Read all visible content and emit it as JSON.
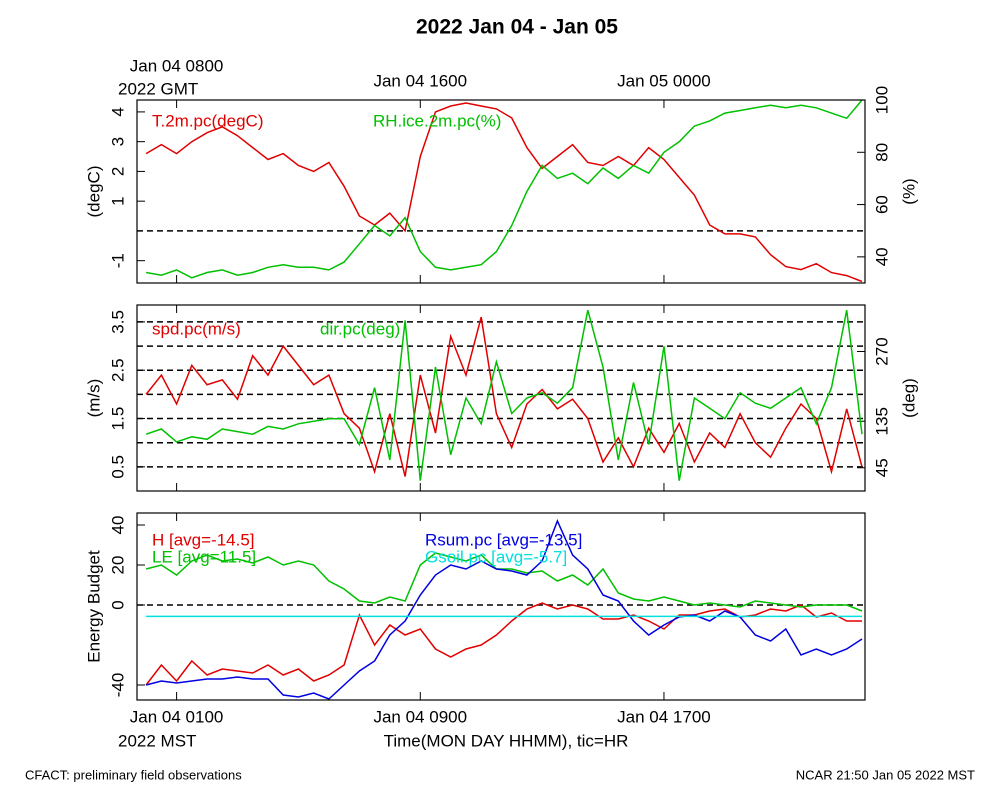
{
  "title": "2022 Jan 04 - Jan 05",
  "x_axis": {
    "label": "Time(MON DAY HHMM), tic=HR",
    "bottom_zone": "2022 MST",
    "top_zone": "2022 GMT",
    "xlim": [
      -0.3,
      23.6
    ],
    "xticks": [
      {
        "value": 1,
        "label": "Jan 04 0100"
      },
      {
        "value": 9,
        "label": "Jan 04 0900"
      },
      {
        "value": 17,
        "label": "Jan 04 1700"
      }
    ],
    "top_xticks": [
      {
        "value": 1,
        "label": "Jan 04 0800"
      },
      {
        "value": 9,
        "label": "Jan 04 1600"
      },
      {
        "value": 17,
        "label": "Jan 05 0000"
      }
    ]
  },
  "footer_left": "CFACT: preliminary field observations",
  "footer_right": "NCAR 21:50 Jan 05 2022 MST",
  "chart_data": [
    {
      "type": "line",
      "ylabel": "(degC)",
      "y2label": "(%)",
      "ylim": [
        -1.75,
        4.4
      ],
      "yticks": [
        -1,
        1,
        2,
        3,
        4
      ],
      "y2lim": [
        30,
        100
      ],
      "y2ticks": [
        40,
        60,
        80,
        100
      ],
      "hlines": [
        0
      ],
      "x": [
        0,
        0.5,
        1,
        1.5,
        2,
        2.5,
        3,
        3.5,
        4,
        4.5,
        5,
        5.5,
        6,
        6.5,
        7,
        7.5,
        8,
        8.5,
        9,
        9.5,
        10,
        10.5,
        11,
        11.5,
        12,
        12.5,
        13,
        13.5,
        14,
        14.5,
        15,
        15.5,
        16,
        16.5,
        17,
        17.5,
        18,
        18.5,
        19,
        19.5,
        20,
        20.5,
        21,
        21.5,
        22,
        22.5,
        23,
        23.5
      ],
      "series": [
        {
          "name": "T.2m.pc(degC)",
          "color": "#e00000",
          "values": [
            2.6,
            2.9,
            2.6,
            3.0,
            3.3,
            3.5,
            3.2,
            2.8,
            2.4,
            2.6,
            2.2,
            2.0,
            2.3,
            1.5,
            0.5,
            0.2,
            0.6,
            0.0,
            2.5,
            4.0,
            4.2,
            4.3,
            4.2,
            4.1,
            3.8,
            2.8,
            2.1,
            2.5,
            2.9,
            2.3,
            2.2,
            2.5,
            2.2,
            2.8,
            2.4,
            1.8,
            1.2,
            0.2,
            -0.1,
            -0.1,
            -0.2,
            -0.8,
            -1.2,
            -1.3,
            -1.1,
            -1.4,
            -1.5,
            -1.7
          ]
        },
        {
          "name": "RH.ice.2m.pc(%)",
          "color": "#00c000",
          "axis": "y2",
          "values": [
            34,
            33,
            35,
            32,
            34,
            35,
            33,
            34,
            36,
            37,
            36,
            36,
            35,
            38,
            45,
            52,
            48,
            55,
            42,
            36,
            35,
            36,
            37,
            42,
            52,
            65,
            75,
            70,
            72,
            68,
            74,
            70,
            75,
            72,
            80,
            84,
            90,
            92,
            95,
            96,
            97,
            98,
            97,
            98,
            97,
            95,
            93,
            100
          ]
        }
      ]
    },
    {
      "type": "line",
      "ylabel": "(m/s)",
      "y2label": "(deg)",
      "ylim": [
        0,
        3.85
      ],
      "yticks": [
        0.5,
        1.5,
        2.5,
        3.5
      ],
      "y2lim": [
        0,
        360
      ],
      "y2ticks": [
        45,
        135,
        270
      ],
      "hlines": [
        0.5,
        1,
        1.5,
        2,
        2.5,
        3,
        3.5
      ],
      "x": [
        0,
        0.5,
        1,
        1.5,
        2,
        2.5,
        3,
        3.5,
        4,
        4.5,
        5,
        5.5,
        6,
        6.5,
        7,
        7.5,
        8,
        8.5,
        9,
        9.5,
        10,
        10.5,
        11,
        11.5,
        12,
        12.5,
        13,
        13.5,
        14,
        14.5,
        15,
        15.5,
        16,
        16.5,
        17,
        17.5,
        18,
        18.5,
        19,
        19.5,
        20,
        20.5,
        21,
        21.5,
        22,
        22.5,
        23,
        23.5
      ],
      "series": [
        {
          "name": "spd.pc(m/s)",
          "color": "#e00000",
          "values": [
            2.0,
            2.4,
            1.8,
            2.6,
            2.2,
            2.3,
            1.9,
            2.8,
            2.4,
            3.0,
            2.6,
            2.2,
            2.4,
            1.6,
            1.3,
            0.4,
            1.6,
            0.3,
            2.4,
            1.2,
            3.2,
            2.4,
            3.6,
            1.6,
            0.9,
            1.8,
            2.1,
            1.7,
            1.9,
            1.5,
            0.6,
            1.1,
            0.5,
            1.3,
            0.8,
            1.4,
            0.6,
            1.2,
            0.9,
            1.6,
            1.0,
            0.7,
            1.3,
            1.8,
            1.5,
            0.4,
            1.7,
            0.5
          ]
        },
        {
          "name": "dir.pc(deg)",
          "color": "#00c000",
          "axis": "y2",
          "values": [
            110,
            120,
            95,
            105,
            100,
            120,
            115,
            110,
            125,
            120,
            130,
            135,
            140,
            140,
            90,
            200,
            60,
            330,
            20,
            240,
            70,
            180,
            130,
            250,
            150,
            180,
            190,
            170,
            200,
            350,
            240,
            60,
            210,
            90,
            280,
            20,
            180,
            160,
            140,
            190,
            170,
            160,
            180,
            200,
            130,
            200,
            350,
            110
          ]
        }
      ]
    },
    {
      "type": "line",
      "ylabel": "Energy Budget",
      "ylim": [
        -47.5,
        46
      ],
      "yticks": [
        -40,
        0,
        20,
        40
      ],
      "hlines": [
        0
      ],
      "x": [
        0,
        0.5,
        1,
        1.5,
        2,
        2.5,
        3,
        3.5,
        4,
        4.5,
        5,
        5.5,
        6,
        6.5,
        7,
        7.5,
        8,
        8.5,
        9,
        9.5,
        10,
        10.5,
        11,
        11.5,
        12,
        12.5,
        13,
        13.5,
        14,
        14.5,
        15,
        15.5,
        16,
        16.5,
        17,
        17.5,
        18,
        18.5,
        19,
        19.5,
        20,
        20.5,
        21,
        21.5,
        22,
        22.5,
        23,
        23.5
      ],
      "series": [
        {
          "name": "H [avg=-14.5]",
          "color": "#e00000",
          "values": [
            -40,
            -30,
            -38,
            -28,
            -35,
            -32,
            -33,
            -34,
            -30,
            -35,
            -32,
            -38,
            -35,
            -30,
            -5,
            -20,
            -10,
            -15,
            -12,
            -22,
            -26,
            -22,
            -20,
            -15,
            -8,
            -2,
            1,
            -2,
            0,
            -2,
            -7,
            -7,
            -5,
            -8,
            -12,
            -5,
            -5,
            -3,
            -2,
            -6,
            -5,
            -2,
            -3,
            0,
            -6,
            -4,
            -8,
            -8
          ]
        },
        {
          "name": "LE [avg=11.5]",
          "color": "#00c000",
          "values": [
            18,
            20,
            15,
            22,
            25,
            22,
            23,
            21,
            24,
            20,
            22,
            20,
            12,
            8,
            2,
            1,
            4,
            2,
            20,
            26,
            24,
            22,
            25,
            18,
            18,
            16,
            17,
            12,
            15,
            10,
            18,
            6,
            3,
            2,
            4,
            2,
            0,
            1,
            0,
            -1,
            2,
            1,
            0,
            -1,
            0,
            0,
            0,
            -3
          ]
        },
        {
          "name": "Rsum.pc [avg=-13.5]",
          "color": "#0000e0",
          "values": [
            -40,
            -38,
            -39,
            -38,
            -37,
            -37,
            -36,
            -37,
            -37,
            -45,
            -46,
            -44,
            -47,
            -40,
            -33,
            -28,
            -15,
            -8,
            5,
            15,
            20,
            18,
            22,
            18,
            17,
            15,
            22,
            42,
            25,
            18,
            5,
            2,
            -8,
            -15,
            -10,
            -6,
            -5,
            -8,
            -3,
            -6,
            -15,
            -18,
            -12,
            -25,
            -22,
            -25,
            -22,
            -17
          ]
        },
        {
          "name": "Gsoil.pc [avg=-5.7]",
          "color": "#00e0e0",
          "values": [
            -5.7,
            -5.7,
            -5.7,
            -5.7,
            -5.7,
            -5.7,
            -5.7,
            -5.7,
            -5.7,
            -5.7,
            -5.7,
            -5.7,
            -5.7,
            -5.7,
            -5.7,
            -5.7,
            -5.7,
            -5.7,
            -5.7,
            -5.7,
            -5.7,
            -5.7,
            -5.7,
            -5.7,
            -5.7,
            -5.7,
            -5.7,
            -5.7,
            -5.7,
            -5.7,
            -5.7,
            -5.7,
            -5.7,
            -5.7,
            -5.7,
            -5.7,
            -5.7,
            -5.7,
            -5.7,
            -5.7,
            -5.7,
            -5.7,
            -5.7,
            -5.7,
            -5.7,
            -5.7,
            -5.7,
            -5.7
          ]
        }
      ]
    }
  ]
}
